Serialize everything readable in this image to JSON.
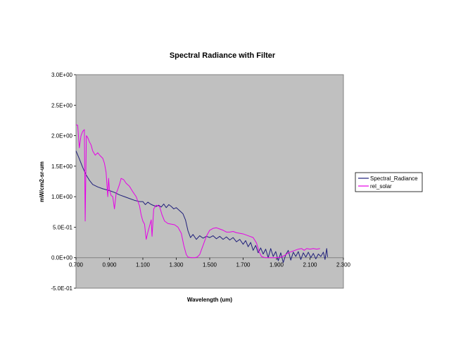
{
  "chart_data": {
    "type": "line",
    "title": "Spectral Radiance with Filter",
    "xlabel": "Wavelength (um)",
    "ylabel": "mW/cm2-sr-um",
    "xlim": [
      0.7,
      2.3
    ],
    "ylim": [
      -0.5,
      3.0
    ],
    "x_ticks": [
      "0.700",
      "0.900",
      "1.100",
      "1.300",
      "1.500",
      "1.700",
      "1.900",
      "2.100",
      "2.300"
    ],
    "x_tick_values": [
      0.7,
      0.9,
      1.1,
      1.3,
      1.5,
      1.7,
      1.9,
      2.1,
      2.3
    ],
    "y_ticks": [
      "-5.0E-01",
      "0.0E+00",
      "5.0E-01",
      "1.0E+00",
      "1.5E+00",
      "2.0E+00",
      "2.5E+00",
      "3.0E+00"
    ],
    "y_tick_values": [
      -0.5,
      0.0,
      0.5,
      1.0,
      1.5,
      2.0,
      2.5,
      3.0
    ],
    "grid": false,
    "legend_position": "right",
    "plot_background": "#c0c0c0",
    "series": [
      {
        "name": "Spectral_Radiance",
        "color": "#1f1f7a",
        "points": [
          [
            0.7,
            1.75
          ],
          [
            0.72,
            1.62
          ],
          [
            0.74,
            1.48
          ],
          [
            0.76,
            1.36
          ],
          [
            0.78,
            1.27
          ],
          [
            0.8,
            1.2
          ],
          [
            0.83,
            1.16
          ],
          [
            0.86,
            1.13
          ],
          [
            0.9,
            1.1
          ],
          [
            0.93,
            1.07
          ],
          [
            0.96,
            1.03
          ],
          [
            0.99,
            1.0
          ],
          [
            1.02,
            0.97
          ],
          [
            1.05,
            0.94
          ],
          [
            1.08,
            0.92
          ],
          [
            1.1,
            0.92
          ],
          [
            1.115,
            0.87
          ],
          [
            1.13,
            0.91
          ],
          [
            1.145,
            0.88
          ],
          [
            1.16,
            0.86
          ],
          [
            1.18,
            0.84
          ],
          [
            1.195,
            0.86
          ],
          [
            1.21,
            0.83
          ],
          [
            1.225,
            0.88
          ],
          [
            1.24,
            0.82
          ],
          [
            1.255,
            0.87
          ],
          [
            1.27,
            0.84
          ],
          [
            1.285,
            0.8
          ],
          [
            1.3,
            0.82
          ],
          [
            1.32,
            0.77
          ],
          [
            1.34,
            0.72
          ],
          [
            1.355,
            0.62
          ],
          [
            1.37,
            0.44
          ],
          [
            1.385,
            0.33
          ],
          [
            1.4,
            0.38
          ],
          [
            1.42,
            0.3
          ],
          [
            1.44,
            0.36
          ],
          [
            1.46,
            0.32
          ],
          [
            1.48,
            0.35
          ],
          [
            1.5,
            0.33
          ],
          [
            1.52,
            0.36
          ],
          [
            1.54,
            0.31
          ],
          [
            1.56,
            0.35
          ],
          [
            1.58,
            0.3
          ],
          [
            1.6,
            0.34
          ],
          [
            1.62,
            0.29
          ],
          [
            1.64,
            0.33
          ],
          [
            1.66,
            0.26
          ],
          [
            1.68,
            0.3
          ],
          [
            1.7,
            0.22
          ],
          [
            1.715,
            0.28
          ],
          [
            1.73,
            0.18
          ],
          [
            1.745,
            0.25
          ],
          [
            1.76,
            0.12
          ],
          [
            1.775,
            0.2
          ],
          [
            1.79,
            0.08
          ],
          [
            1.805,
            0.16
          ],
          [
            1.82,
            0.06
          ],
          [
            1.835,
            0.14
          ],
          [
            1.85,
            0.0
          ],
          [
            1.865,
            0.15
          ],
          [
            1.88,
            0.02
          ],
          [
            1.895,
            0.1
          ],
          [
            1.91,
            -0.05
          ],
          [
            1.925,
            0.08
          ],
          [
            1.94,
            -0.08
          ],
          [
            1.955,
            0.05
          ],
          [
            1.97,
            0.12
          ],
          [
            1.985,
            -0.04
          ],
          [
            2.0,
            0.09
          ],
          [
            2.015,
            0.02
          ],
          [
            2.03,
            0.1
          ],
          [
            2.045,
            -0.03
          ],
          [
            2.06,
            0.08
          ],
          [
            2.075,
            0.01
          ],
          [
            2.09,
            0.09
          ],
          [
            2.105,
            0.0
          ],
          [
            2.12,
            0.07
          ],
          [
            2.135,
            -0.02
          ],
          [
            2.15,
            0.06
          ],
          [
            2.165,
            0.02
          ],
          [
            2.18,
            0.09
          ],
          [
            2.19,
            -0.03
          ],
          [
            2.2,
            0.15
          ],
          [
            2.205,
            0.01
          ]
        ]
      },
      {
        "name": "rel_solar",
        "color": "#e600e6",
        "points": [
          [
            0.7,
            2.18
          ],
          [
            0.71,
            2.17
          ],
          [
            0.72,
            1.8
          ],
          [
            0.73,
            2.0
          ],
          [
            0.74,
            2.07
          ],
          [
            0.75,
            2.1
          ],
          [
            0.755,
            0.6
          ],
          [
            0.762,
            2.0
          ],
          [
            0.77,
            1.97
          ],
          [
            0.78,
            1.9
          ],
          [
            0.79,
            1.85
          ],
          [
            0.8,
            1.75
          ],
          [
            0.815,
            1.68
          ],
          [
            0.83,
            1.72
          ],
          [
            0.845,
            1.67
          ],
          [
            0.86,
            1.63
          ],
          [
            0.87,
            1.55
          ],
          [
            0.88,
            1.4
          ],
          [
            0.89,
            1.0
          ],
          [
            0.895,
            1.3
          ],
          [
            0.9,
            1.12
          ],
          [
            0.91,
            1.02
          ],
          [
            0.92,
            1.0
          ],
          [
            0.93,
            0.8
          ],
          [
            0.94,
            1.05
          ],
          [
            0.95,
            1.12
          ],
          [
            0.96,
            1.2
          ],
          [
            0.97,
            1.3
          ],
          [
            0.985,
            1.28
          ],
          [
            1.0,
            1.22
          ],
          [
            1.02,
            1.17
          ],
          [
            1.04,
            1.08
          ],
          [
            1.06,
            1.0
          ],
          [
            1.08,
            0.85
          ],
          [
            1.09,
            0.7
          ],
          [
            1.1,
            0.6
          ],
          [
            1.11,
            0.55
          ],
          [
            1.12,
            0.3
          ],
          [
            1.13,
            0.42
          ],
          [
            1.14,
            0.52
          ],
          [
            1.15,
            0.62
          ],
          [
            1.155,
            0.35
          ],
          [
            1.165,
            0.8
          ],
          [
            1.18,
            0.86
          ],
          [
            1.2,
            0.84
          ],
          [
            1.215,
            0.7
          ],
          [
            1.23,
            0.6
          ],
          [
            1.25,
            0.56
          ],
          [
            1.27,
            0.55
          ],
          [
            1.29,
            0.54
          ],
          [
            1.31,
            0.5
          ],
          [
            1.33,
            0.4
          ],
          [
            1.345,
            0.2
          ],
          [
            1.36,
            0.05
          ],
          [
            1.37,
            0.01
          ],
          [
            1.39,
            0.0
          ],
          [
            1.41,
            0.0
          ],
          [
            1.425,
            0.01
          ],
          [
            1.44,
            0.05
          ],
          [
            1.46,
            0.2
          ],
          [
            1.48,
            0.35
          ],
          [
            1.5,
            0.45
          ],
          [
            1.52,
            0.48
          ],
          [
            1.54,
            0.49
          ],
          [
            1.56,
            0.47
          ],
          [
            1.58,
            0.45
          ],
          [
            1.6,
            0.42
          ],
          [
            1.62,
            0.42
          ],
          [
            1.64,
            0.43
          ],
          [
            1.66,
            0.41
          ],
          [
            1.68,
            0.4
          ],
          [
            1.7,
            0.39
          ],
          [
            1.72,
            0.37
          ],
          [
            1.74,
            0.35
          ],
          [
            1.76,
            0.33
          ],
          [
            1.78,
            0.24
          ],
          [
            1.795,
            0.1
          ],
          [
            1.81,
            0.02
          ],
          [
            1.83,
            0.0
          ],
          [
            1.86,
            0.0
          ],
          [
            1.88,
            0.0
          ],
          [
            1.9,
            0.0
          ],
          [
            1.93,
            0.01
          ],
          [
            1.95,
            0.04
          ],
          [
            1.97,
            0.08
          ],
          [
            1.99,
            0.1
          ],
          [
            2.01,
            0.12
          ],
          [
            2.03,
            0.14
          ],
          [
            2.05,
            0.15
          ],
          [
            2.065,
            0.12
          ],
          [
            2.08,
            0.15
          ],
          [
            2.1,
            0.14
          ],
          [
            2.12,
            0.15
          ],
          [
            2.14,
            0.14
          ],
          [
            2.16,
            0.15
          ]
        ]
      }
    ]
  }
}
